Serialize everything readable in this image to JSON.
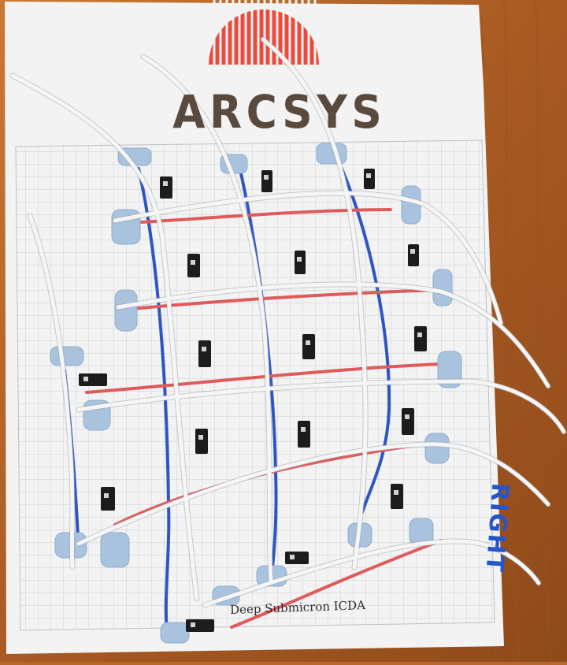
{
  "logo": {
    "brand_text": "ARCSYS"
  },
  "caption": "Deep Submicron ICDA",
  "side_label": "RIGHT",
  "colors": {
    "table": "#b8692a",
    "paper": "#f2f2f2",
    "grid": "#c9cfd6",
    "red_marker": "#e05a5a",
    "blue_marker": "#2f55c4",
    "wire": "#f4f4f4",
    "putty": "#a9c3de",
    "component": "#1c1c1c",
    "logo_sun": "#ec4a3c"
  }
}
